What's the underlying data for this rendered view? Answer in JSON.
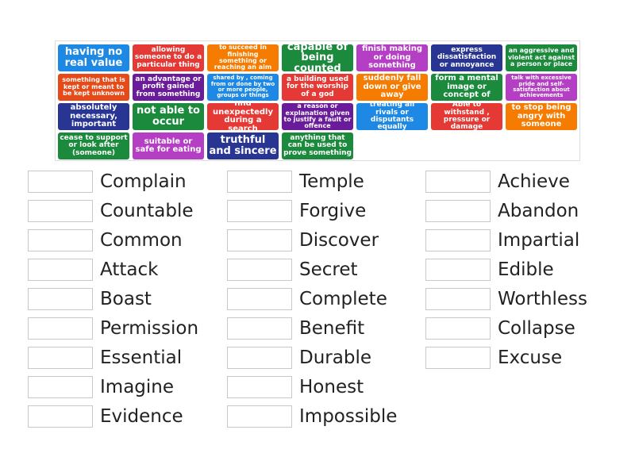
{
  "tiles": [
    {
      "text": "having no real value",
      "color": "#1e88e5"
    },
    {
      "text": "allowing someone to do a particular thing",
      "color": "#e53935"
    },
    {
      "text": "to succeed in finishing something or reaching an aim",
      "color": "#f57c00"
    },
    {
      "text": "capable of being counted",
      "color": "#1b8a3c"
    },
    {
      "text": "finish making or doing something",
      "color": "#b53fc4"
    },
    {
      "text": "express dissatisfaction or annoyance",
      "color": "#283593"
    },
    {
      "text": "an aggressive and violent act against a person or place",
      "color": "#1b8a3c"
    },
    {
      "text": "something that is kept or meant to be kept unknown",
      "color": "#e64a19"
    },
    {
      "text": "an advantage or profit gained from something",
      "color": "#6a1b9a"
    },
    {
      "text": "shared by , coming from or done by two or more people, groups or things",
      "color": "#1e88e5"
    },
    {
      "text": "a building used for the worship of a god",
      "color": "#e53935"
    },
    {
      "text": "suddenly fall down or give away",
      "color": "#f57c00"
    },
    {
      "text": "form a mental image or concept of",
      "color": "#1b8a3c"
    },
    {
      "text": "talk with excessive pride and self-satisfaction about achievements",
      "color": "#b53fc4"
    },
    {
      "text": "absolutely necessary, important",
      "color": "#283593"
    },
    {
      "text": "not able to occur",
      "color": "#1b8a3c"
    },
    {
      "text": "find unexpectedly during a search",
      "color": "#e53935"
    },
    {
      "text": "a reason or explanation given to justify a fault or offence",
      "color": "#6a1b9a"
    },
    {
      "text": "treating all rivals or disputants equally",
      "color": "#1e88e5"
    },
    {
      "text": "Able to withstand , pressure or damage",
      "color": "#e53935"
    },
    {
      "text": "to stop being angry with someone",
      "color": "#f57c00"
    },
    {
      "text": "cease to support or look after (someone)",
      "color": "#1b8a3c"
    },
    {
      "text": "suitable or safe for eating",
      "color": "#b53fc4"
    },
    {
      "text": "truthful and sincere",
      "color": "#283593"
    },
    {
      "text": "anything that can be used to prove something",
      "color": "#1b8a3c"
    }
  ],
  "words": [
    [
      "Complain",
      "Countable",
      "Common",
      "Attack",
      "Boast",
      "Permission",
      "Essential",
      "Imagine",
      "Evidence"
    ],
    [
      "Temple",
      "Forgive",
      "Discover",
      "Secret",
      "Complete",
      "Benefit",
      "Durable",
      "Honest",
      "Impossible"
    ],
    [
      "Achieve",
      "Abandon",
      "Impartial",
      "Edible",
      "Worthless",
      "Collapse",
      "Excuse"
    ]
  ]
}
